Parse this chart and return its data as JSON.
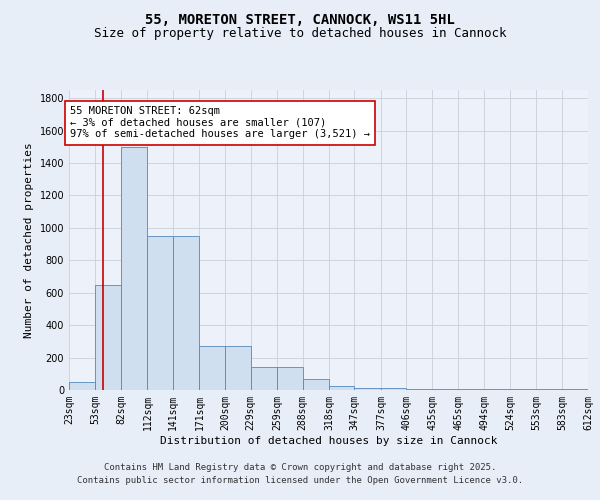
{
  "title": "55, MORETON STREET, CANNOCK, WS11 5HL",
  "subtitle": "Size of property relative to detached houses in Cannock",
  "xlabel": "Distribution of detached houses by size in Cannock",
  "ylabel": "Number of detached properties",
  "bin_edges": [
    23,
    53,
    82,
    112,
    141,
    171,
    200,
    229,
    259,
    288,
    318,
    347,
    377,
    406,
    435,
    465,
    494,
    524,
    553,
    583,
    612
  ],
  "bar_heights": [
    50,
    650,
    1500,
    950,
    950,
    270,
    270,
    140,
    140,
    70,
    25,
    15,
    15,
    5,
    5,
    5,
    5,
    5,
    5,
    5
  ],
  "bar_color": "#d0dff0",
  "bar_edgecolor": "#5588bb",
  "property_size": 62,
  "red_line_color": "#cc0000",
  "annotation_text": "55 MORETON STREET: 62sqm\n← 3% of detached houses are smaller (107)\n97% of semi-detached houses are larger (3,521) →",
  "annotation_box_color": "#ffffff",
  "annotation_box_edgecolor": "#cc0000",
  "ylim": [
    0,
    1850
  ],
  "yticks": [
    0,
    200,
    400,
    600,
    800,
    1000,
    1200,
    1400,
    1600,
    1800
  ],
  "bg_color": "#e8eef8",
  "plot_bg_color": "#edf2fa",
  "grid_color": "#c8d0dc",
  "footer_line1": "Contains HM Land Registry data © Crown copyright and database right 2025.",
  "footer_line2": "Contains public sector information licensed under the Open Government Licence v3.0.",
  "title_fontsize": 10,
  "subtitle_fontsize": 9,
  "xlabel_fontsize": 8,
  "ylabel_fontsize": 8,
  "tick_fontsize": 7,
  "annotation_fontsize": 7.5,
  "footer_fontsize": 6.5
}
